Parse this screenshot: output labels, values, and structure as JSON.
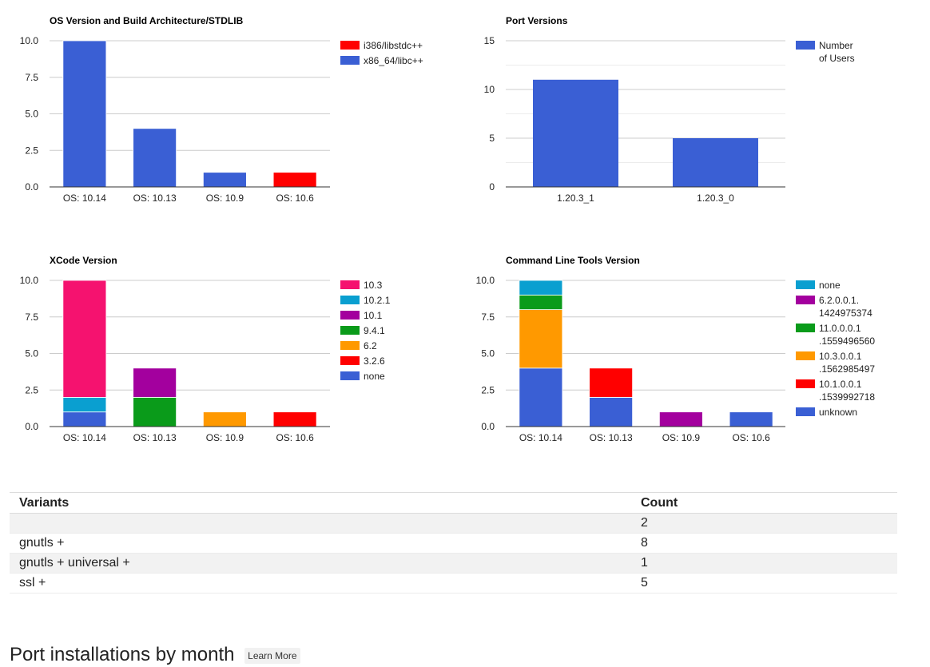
{
  "chart_data": [
    {
      "id": "os",
      "type": "bar",
      "stacked": true,
      "title": "OS Version and Build Architecture/STDLIB",
      "categories": [
        "OS: 10.14",
        "OS: 10.13",
        "OS: 10.9",
        "OS: 10.6"
      ],
      "series": [
        {
          "name": "i386/libstdc++",
          "color": "#ff0000",
          "values": [
            0,
            0,
            0,
            1
          ]
        },
        {
          "name": "x86_64/libc++",
          "color": "#3a5fd4",
          "values": [
            10,
            4,
            1,
            0
          ]
        }
      ],
      "ylim": [
        0,
        10
      ],
      "yticks": [
        "0.0",
        "2.5",
        "5.0",
        "7.5",
        "10.0"
      ],
      "legend_position": "right"
    },
    {
      "id": "port",
      "type": "bar",
      "stacked": false,
      "title": "Port Versions",
      "categories": [
        "1.20.3_1",
        "1.20.3_0"
      ],
      "series": [
        {
          "name": "Number of Users",
          "color": "#3a5fd4",
          "values": [
            11,
            5
          ]
        }
      ],
      "ylim": [
        0,
        15
      ],
      "yticks": [
        "0",
        "5",
        "10",
        "15"
      ],
      "legend_position": "right"
    },
    {
      "id": "xcode",
      "type": "bar",
      "stacked": true,
      "title": "XCode Version",
      "categories": [
        "OS: 10.14",
        "OS: 10.13",
        "OS: 10.9",
        "OS: 10.6"
      ],
      "series": [
        {
          "name": "10.3",
          "color": "#f5126f",
          "values": [
            8,
            0,
            0,
            0
          ]
        },
        {
          "name": "10.2.1",
          "color": "#0a9fd0",
          "values": [
            1,
            0,
            0,
            0
          ]
        },
        {
          "name": "10.1",
          "color": "#a3009e",
          "values": [
            0,
            2,
            0,
            0
          ]
        },
        {
          "name": "9.4.1",
          "color": "#0a9b1a",
          "values": [
            0,
            2,
            0,
            0
          ]
        },
        {
          "name": "6.2",
          "color": "#ff9900",
          "values": [
            0,
            0,
            1,
            0
          ]
        },
        {
          "name": "3.2.6",
          "color": "#ff0000",
          "values": [
            0,
            0,
            0,
            1
          ]
        },
        {
          "name": "none",
          "color": "#3a5fd4",
          "values": [
            1,
            0,
            0,
            0
          ]
        }
      ],
      "ylim": [
        0,
        10
      ],
      "yticks": [
        "0.0",
        "2.5",
        "5.0",
        "7.5",
        "10.0"
      ],
      "legend_position": "right"
    },
    {
      "id": "clt",
      "type": "bar",
      "stacked": true,
      "title": "Command Line Tools Version",
      "categories": [
        "OS: 10.14",
        "OS: 10.13",
        "OS: 10.9",
        "OS: 10.6"
      ],
      "series": [
        {
          "name": "none",
          "color": "#0a9fd0",
          "values": [
            1,
            0,
            0,
            0
          ]
        },
        {
          "name": "6.2.0.0.1.1424975374",
          "color": "#a3009e",
          "values": [
            0,
            0,
            1,
            0
          ]
        },
        {
          "name": "11.0.0.0.1.1559496560",
          "color": "#0a9b1a",
          "values": [
            1,
            0,
            0,
            0
          ]
        },
        {
          "name": "10.3.0.0.1.1562985497",
          "color": "#ff9900",
          "values": [
            4,
            0,
            0,
            0
          ]
        },
        {
          "name": "10.1.0.0.1.1539992718",
          "color": "#ff0000",
          "values": [
            0,
            2,
            0,
            0
          ]
        },
        {
          "name": "unknown",
          "color": "#3a5fd4",
          "values": [
            4,
            2,
            0,
            1
          ]
        }
      ],
      "ylim": [
        0,
        10
      ],
      "yticks": [
        "0.0",
        "2.5",
        "5.0",
        "7.5",
        "10.0"
      ],
      "legend_position": "right"
    }
  ],
  "variants_table": {
    "headers": [
      "Variants",
      "Count"
    ],
    "rows": [
      {
        "variant": "",
        "count": "2"
      },
      {
        "variant": "gnutls +",
        "count": "8"
      },
      {
        "variant": "gnutls + universal +",
        "count": "1"
      },
      {
        "variant": "ssl +",
        "count": "5"
      }
    ]
  },
  "installations_section": {
    "title": "Port installations by month",
    "learn_more_label": "Learn More"
  }
}
